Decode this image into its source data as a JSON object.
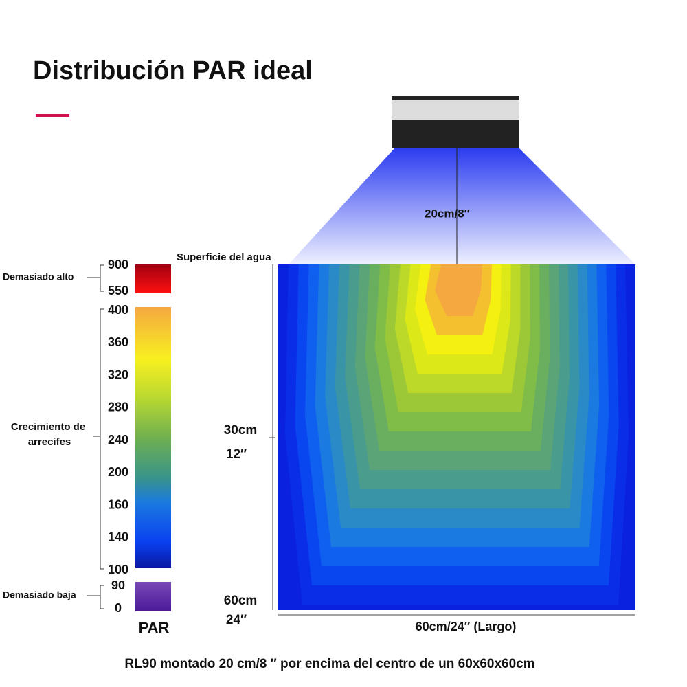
{
  "title": "Distribución PAR ideal",
  "lamp": {
    "distance_label": "20cm/8″",
    "surface_label": "Superficie del agua"
  },
  "scale": {
    "title": "PAR",
    "high": {
      "label": "Demasiado alto",
      "ticks": [
        "900",
        "550"
      ]
    },
    "growth": {
      "label_lines": [
        "Crecimiento de",
        "arrecifes"
      ],
      "ticks": [
        "400",
        "360",
        "320",
        "280",
        "240",
        "200",
        "160",
        "140",
        "100"
      ]
    },
    "low": {
      "label": "Demasiado baja",
      "ticks": [
        "90",
        "0"
      ]
    }
  },
  "depth": {
    "mid": [
      "30cm",
      "12″"
    ],
    "bottom": [
      "60cm",
      "24″"
    ]
  },
  "length_label": "60cm/24″  (Largo)",
  "caption": "RL90  montado 20 cm/8  ″ por encima del centro de un 60x60x60cm"
}
